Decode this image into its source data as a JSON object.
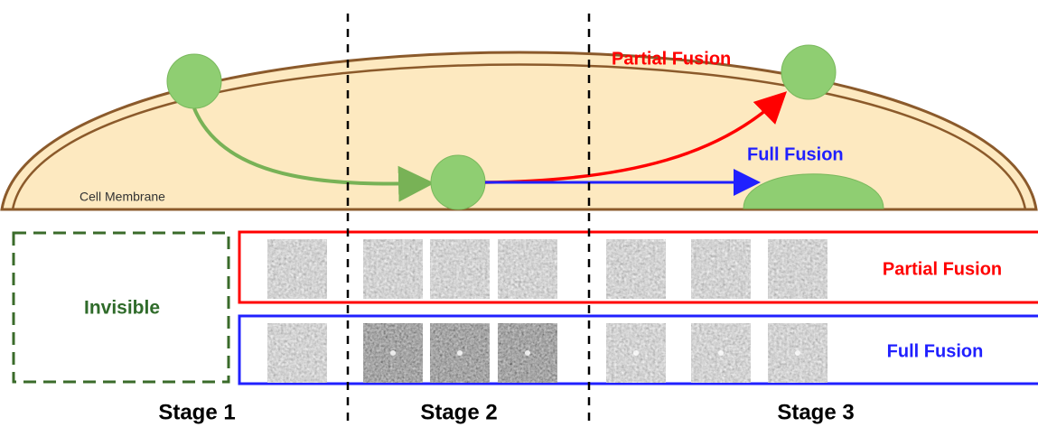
{
  "cell": {
    "membrane_label": "Cell Membrane",
    "partial_label": "Partial Fusion",
    "full_label": "Full Fusion"
  },
  "panels": {
    "invisible": "Invisible",
    "partial": "Partial Fusion",
    "full": "Full Fusion"
  },
  "stages": [
    "Stage 1",
    "Stage 2",
    "Stage 3"
  ]
}
